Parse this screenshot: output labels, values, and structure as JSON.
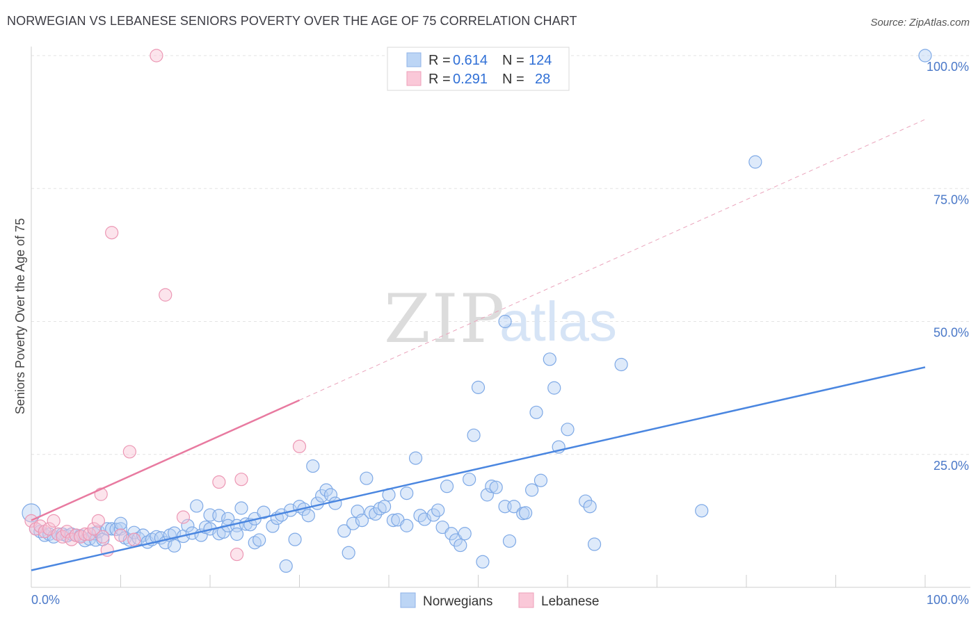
{
  "header": {
    "title": "NORWEGIAN VS LEBANESE SENIORS POVERTY OVER THE AGE OF 75 CORRELATION CHART",
    "source": "Source: ZipAtlas.com"
  },
  "watermark": {
    "zip": "ZIP",
    "atlas": "atlas"
  },
  "legend": {
    "rows": [
      {
        "r_label": "R =",
        "r_value": "0.614",
        "n_label": "N =",
        "n_value": "124",
        "color": "#a9c8f0"
      },
      {
        "r_label": "R =",
        "r_value": "0.291",
        "n_label": "N =",
        "n_value": "28",
        "color": "#f7b9cc"
      }
    ]
  },
  "bottom_legend": [
    {
      "label": "Norwegians",
      "color": "#a9c8f0"
    },
    {
      "label": "Lebanese",
      "color": "#f7b9cc"
    }
  ],
  "chart_data": {
    "type": "scatter",
    "ylabel": "Seniors Poverty Over the Age of 75",
    "x_tick_labels": [
      "0.0%",
      "100.0%"
    ],
    "y_tick_labels": [
      "25.0%",
      "50.0%",
      "75.0%",
      "100.0%"
    ],
    "xlim": [
      0,
      100
    ],
    "ylim": [
      0,
      100
    ],
    "grid": true,
    "colors": {
      "norwegians": "#4a86e0",
      "lebanese": "#e87aa0",
      "tick": "#4a78c8"
    },
    "series": [
      {
        "name": "Norwegians",
        "trend": {
          "x": [
            0,
            100
          ],
          "y": [
            3.2,
            41.4
          ]
        },
        "points": [
          [
            0,
            14
          ],
          [
            0.5,
            11
          ],
          [
            1,
            10.5
          ],
          [
            1.5,
            9.8
          ],
          [
            2,
            10
          ],
          [
            2.5,
            9.5
          ],
          [
            3,
            10
          ],
          [
            3.5,
            10
          ],
          [
            4,
            9.7
          ],
          [
            4.5,
            10
          ],
          [
            5,
            9.8
          ],
          [
            5.5,
            9.7
          ],
          [
            6,
            8.8
          ],
          [
            6.5,
            9.1
          ],
          [
            7,
            10.1
          ],
          [
            7.2,
            8.9
          ],
          [
            7.5,
            10.5
          ],
          [
            8,
            9
          ],
          [
            8.5,
            11
          ],
          [
            9,
            11
          ],
          [
            9.5,
            10.9
          ],
          [
            10,
            11
          ],
          [
            10,
            12
          ],
          [
            10.5,
            9.3
          ],
          [
            11,
            8.9
          ],
          [
            11.5,
            10.3
          ],
          [
            12,
            9.2
          ],
          [
            12.5,
            9.8
          ],
          [
            13,
            8.5
          ],
          [
            13.5,
            9
          ],
          [
            14,
            9.5
          ],
          [
            14.5,
            9.3
          ],
          [
            15,
            8.4
          ],
          [
            15.5,
            9.8
          ],
          [
            16,
            10.2
          ],
          [
            16,
            7.8
          ],
          [
            17,
            9.6
          ],
          [
            17.5,
            11.6
          ],
          [
            18,
            10.2
          ],
          [
            18.5,
            15.3
          ],
          [
            19,
            9.8
          ],
          [
            19.5,
            11.3
          ],
          [
            20,
            11
          ],
          [
            20,
            13.6
          ],
          [
            21,
            10.1
          ],
          [
            21,
            13.5
          ],
          [
            21.5,
            10.4
          ],
          [
            22,
            12.9
          ],
          [
            22,
            11.6
          ],
          [
            23,
            11.6
          ],
          [
            23,
            10
          ],
          [
            23.5,
            14.9
          ],
          [
            24,
            11.9
          ],
          [
            24.5,
            11.8
          ],
          [
            25,
            8.4
          ],
          [
            25,
            12.9
          ],
          [
            25.5,
            8.9
          ],
          [
            26,
            14.1
          ],
          [
            27,
            11.5
          ],
          [
            27.5,
            13
          ],
          [
            28,
            13.6
          ],
          [
            28.5,
            4
          ],
          [
            29,
            14.5
          ],
          [
            29.5,
            9
          ],
          [
            30,
            15.2
          ],
          [
            30.5,
            14.7
          ],
          [
            31,
            13.5
          ],
          [
            31.5,
            22.8
          ],
          [
            32,
            15.8
          ],
          [
            32.5,
            17.2
          ],
          [
            33,
            18.3
          ],
          [
            33.5,
            17.4
          ],
          [
            34,
            15.8
          ],
          [
            35,
            10.6
          ],
          [
            35.5,
            6.5
          ],
          [
            36,
            12
          ],
          [
            36.5,
            14.3
          ],
          [
            37,
            12.6
          ],
          [
            37.5,
            20.5
          ],
          [
            38,
            14.1
          ],
          [
            38.5,
            13.8
          ],
          [
            39,
            14.8
          ],
          [
            39.5,
            15.2
          ],
          [
            40,
            17.4
          ],
          [
            40.5,
            12.6
          ],
          [
            41,
            12.7
          ],
          [
            42,
            11.6
          ],
          [
            42,
            17.7
          ],
          [
            43,
            24.3
          ],
          [
            43.5,
            13.5
          ],
          [
            44,
            12.8
          ],
          [
            45,
            13.6
          ],
          [
            45.5,
            14.5
          ],
          [
            46,
            11.3
          ],
          [
            46.5,
            19
          ],
          [
            47,
            10.1
          ],
          [
            47.5,
            8.9
          ],
          [
            48,
            7.9
          ],
          [
            48.5,
            10.1
          ],
          [
            49,
            20.3
          ],
          [
            49.5,
            28.6
          ],
          [
            50,
            37.6
          ],
          [
            50.5,
            4.8
          ],
          [
            51,
            17.4
          ],
          [
            51.5,
            19
          ],
          [
            52,
            18.8
          ],
          [
            53,
            50
          ],
          [
            53,
            15.2
          ],
          [
            53.5,
            8.7
          ],
          [
            54,
            15.2
          ],
          [
            55,
            13.9
          ],
          [
            55.3,
            14
          ],
          [
            56,
            18.3
          ],
          [
            56.5,
            32.9
          ],
          [
            57,
            20.1
          ],
          [
            58,
            42.9
          ],
          [
            58.5,
            37.5
          ],
          [
            59,
            26.4
          ],
          [
            60,
            29.7
          ],
          [
            62,
            16.2
          ],
          [
            62.5,
            15.2
          ],
          [
            63,
            8.1
          ],
          [
            66,
            41.9
          ],
          [
            75,
            14.4
          ],
          [
            81,
            80
          ],
          [
            100,
            100
          ]
        ]
      },
      {
        "name": "Lebanese",
        "trend": {
          "x": [
            0,
            30
          ],
          "y": [
            12.6,
            35.2
          ]
        },
        "extension": {
          "x": [
            30,
            100
          ],
          "y": [
            35.2,
            88
          ]
        },
        "points": [
          [
            0,
            12.5
          ],
          [
            0.5,
            11
          ],
          [
            1,
            11.5
          ],
          [
            1.5,
            10.5
          ],
          [
            2,
            11
          ],
          [
            2.5,
            12.5
          ],
          [
            3,
            10
          ],
          [
            3.5,
            9.5
          ],
          [
            4,
            10.5
          ],
          [
            4.5,
            9
          ],
          [
            5,
            9.8
          ],
          [
            5.5,
            9.5
          ],
          [
            6,
            10
          ],
          [
            6.5,
            10
          ],
          [
            7,
            11
          ],
          [
            7.5,
            12.5
          ],
          [
            7.8,
            17.5
          ],
          [
            8,
            9.5
          ],
          [
            8.5,
            7
          ],
          [
            9,
            66.7
          ],
          [
            10,
            9.8
          ],
          [
            11,
            25.5
          ],
          [
            11.5,
            9
          ],
          [
            14,
            100
          ],
          [
            15,
            55
          ],
          [
            17,
            13.2
          ],
          [
            21,
            19.8
          ],
          [
            23,
            6.2
          ],
          [
            23.5,
            20.3
          ],
          [
            30,
            26.5
          ]
        ]
      }
    ]
  }
}
